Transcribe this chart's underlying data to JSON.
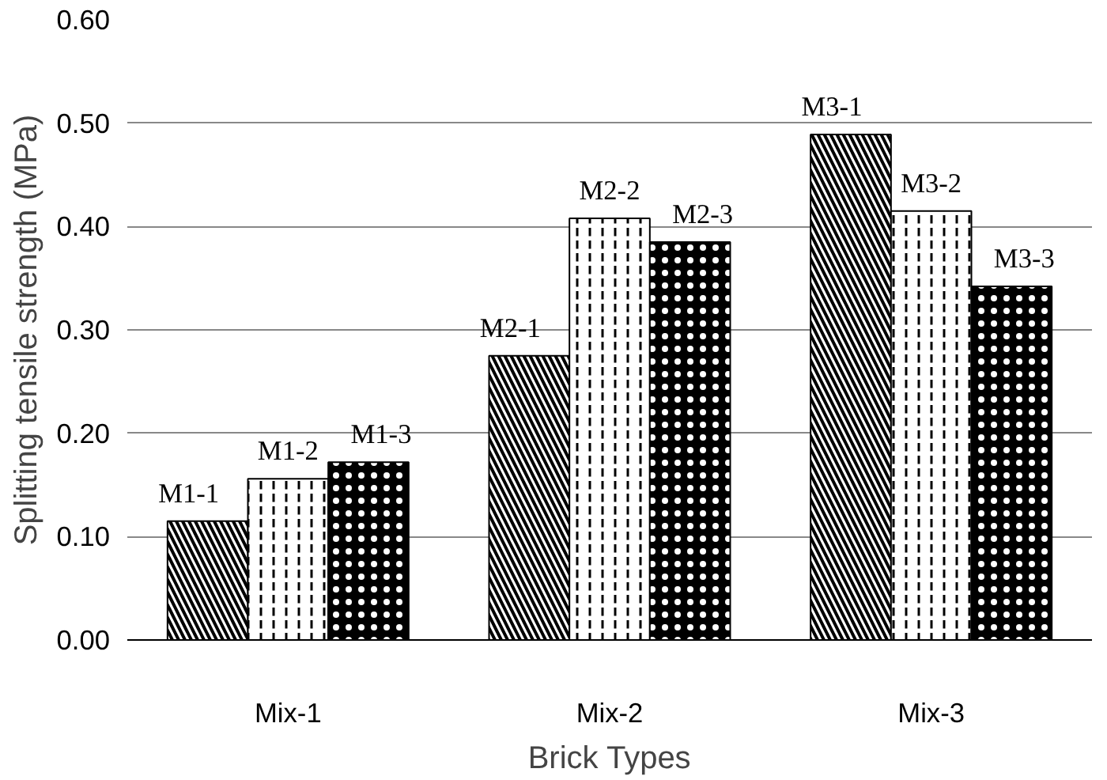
{
  "chart_data": {
    "type": "bar",
    "xlabel": "Brick Types",
    "ylabel": "Splitting tensile strength (MPa)",
    "categories": [
      "Mix-1",
      "Mix-2",
      "Mix-3"
    ],
    "series": [
      {
        "color": "#000000",
        "values": [
          0.115,
          0.275,
          0.489
        ],
        "value_labels": [
          "M1-1",
          "M2-1",
          "M3-1"
        ]
      },
      {
        "color": "#000000",
        "values": [
          0.156,
          0.408,
          0.415
        ],
        "value_labels": [
          "M1-2",
          "M2-2",
          "M3-2"
        ]
      },
      {
        "color": "#000000",
        "values": [
          0.172,
          0.385,
          0.342
        ],
        "value_labels": [
          "M1-3",
          "M2-3",
          "M3-3"
        ]
      }
    ],
    "ylim": [
      0,
      0.6
    ],
    "yticks": [
      {
        "value": 0,
        "label": "0.00"
      },
      {
        "value": 0.1,
        "label": "0.10"
      },
      {
        "value": 0.2,
        "label": "0.20"
      },
      {
        "value": 0.3,
        "label": "0.30"
      },
      {
        "value": 0.4,
        "label": "0.40"
      },
      {
        "value": 0.5,
        "label": "0.50"
      },
      {
        "value": 0.6,
        "label": "0.60"
      }
    ],
    "grid": "y"
  }
}
